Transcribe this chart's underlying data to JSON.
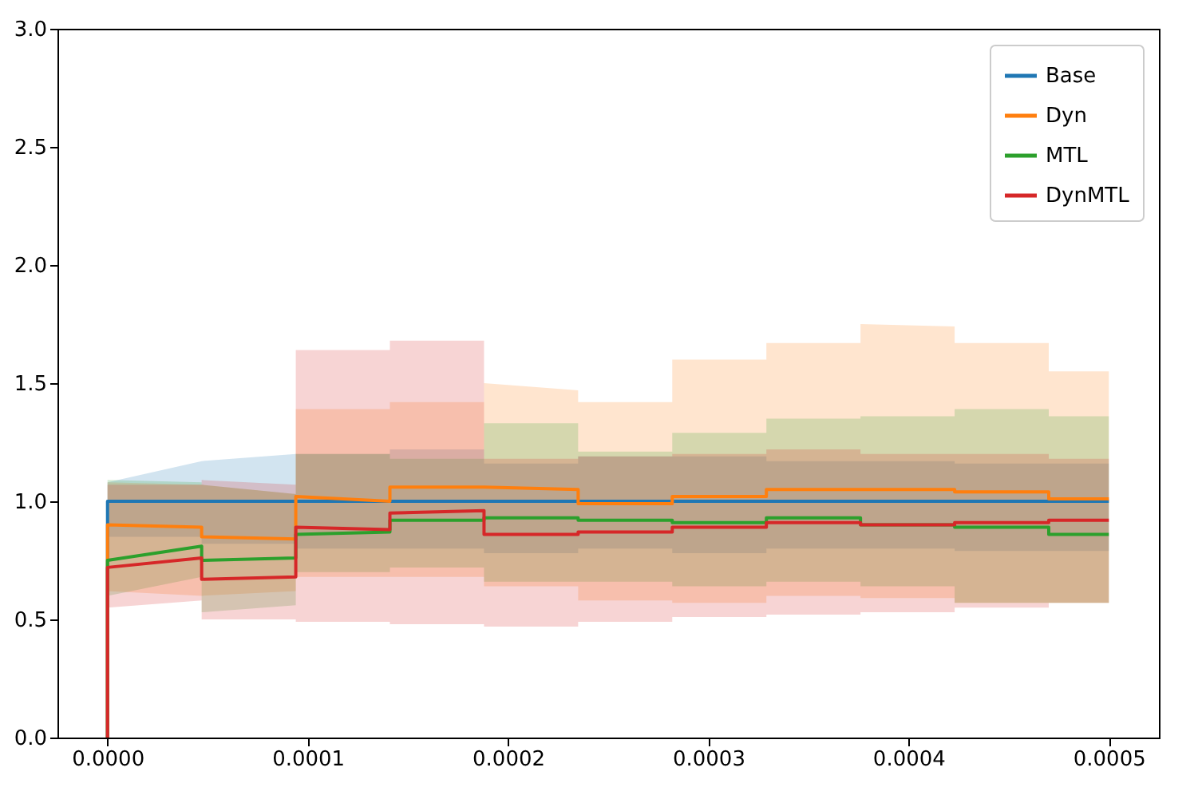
{
  "chart_data": {
    "type": "line",
    "x": [
      0,
      0,
      4.7e-05,
      4.7e-05,
      9.4e-05,
      9.4e-05,
      0.000141,
      0.000141,
      0.000188,
      0.000188,
      0.000235,
      0.000235,
      0.000282,
      0.000282,
      0.000329,
      0.000329,
      0.000376,
      0.000376,
      0.000423,
      0.000423,
      0.00047,
      0.00047,
      0.0005
    ],
    "series": [
      {
        "name": "Base",
        "color": "#1f77b4",
        "values": [
          0,
          1.0,
          1.0,
          1.0,
          1.0,
          1.0,
          1.0,
          1.0,
          1.0,
          1.0,
          1.0,
          1.0,
          1.0,
          1.0,
          1.0,
          1.0,
          1.0,
          1.0,
          1.0,
          1.0,
          1.0,
          1.0,
          1.0
        ],
        "lower": [
          null,
          0.85,
          0.85,
          0.82,
          0.82,
          0.8,
          0.8,
          0.8,
          0.8,
          0.78,
          0.78,
          0.8,
          0.8,
          0.78,
          0.78,
          0.8,
          0.8,
          0.8,
          0.8,
          0.79,
          0.79,
          0.79,
          0.79
        ],
        "upper": [
          null,
          1.08,
          1.17,
          1.17,
          1.2,
          1.2,
          1.2,
          1.22,
          1.22,
          1.16,
          1.16,
          1.19,
          1.19,
          1.19,
          1.19,
          1.17,
          1.17,
          1.17,
          1.17,
          1.16,
          1.16,
          1.16,
          1.16
        ]
      },
      {
        "name": "Dyn",
        "color": "#ff7f0e",
        "values": [
          0,
          0.9,
          0.89,
          0.85,
          0.84,
          1.02,
          1.0,
          1.06,
          1.06,
          1.06,
          1.05,
          0.99,
          0.99,
          1.02,
          1.02,
          1.05,
          1.05,
          1.05,
          1.05,
          1.04,
          1.04,
          1.01,
          1.01
        ],
        "lower": [
          null,
          0.62,
          0.6,
          0.6,
          0.62,
          0.68,
          0.68,
          0.68,
          0.68,
          0.64,
          0.64,
          0.58,
          0.58,
          0.57,
          0.57,
          0.6,
          0.6,
          0.59,
          0.59,
          0.57,
          0.57,
          0.57,
          0.57
        ],
        "upper": [
          null,
          1.08,
          1.07,
          1.07,
          1.03,
          1.39,
          1.39,
          1.42,
          1.42,
          1.5,
          1.47,
          1.42,
          1.42,
          1.6,
          1.6,
          1.67,
          1.67,
          1.75,
          1.74,
          1.67,
          1.67,
          1.55,
          1.55
        ]
      },
      {
        "name": "MTL",
        "color": "#2ca02c",
        "values": [
          0,
          0.75,
          0.81,
          0.75,
          0.76,
          0.86,
          0.87,
          0.92,
          0.92,
          0.93,
          0.93,
          0.92,
          0.92,
          0.91,
          0.91,
          0.93,
          0.93,
          0.9,
          0.9,
          0.89,
          0.89,
          0.86,
          0.86
        ],
        "lower": [
          null,
          0.6,
          0.68,
          0.53,
          0.56,
          0.7,
          0.7,
          0.72,
          0.72,
          0.66,
          0.66,
          0.66,
          0.66,
          0.64,
          0.64,
          0.66,
          0.66,
          0.64,
          0.64,
          0.57,
          0.57,
          0.57,
          0.57
        ],
        "upper": [
          null,
          1.09,
          1.08,
          1.07,
          1.03,
          1.2,
          1.2,
          1.18,
          1.18,
          1.33,
          1.33,
          1.21,
          1.21,
          1.29,
          1.29,
          1.35,
          1.35,
          1.36,
          1.36,
          1.39,
          1.39,
          1.36,
          1.36
        ]
      },
      {
        "name": "DynMTL",
        "color": "#d62728",
        "values": [
          0,
          0.72,
          0.76,
          0.67,
          0.68,
          0.89,
          0.88,
          0.95,
          0.96,
          0.86,
          0.86,
          0.87,
          0.87,
          0.89,
          0.89,
          0.91,
          0.91,
          0.9,
          0.9,
          0.91,
          0.91,
          0.92,
          0.92
        ],
        "lower": [
          null,
          0.55,
          0.58,
          0.5,
          0.5,
          0.49,
          0.49,
          0.48,
          0.48,
          0.47,
          0.47,
          0.49,
          0.49,
          0.51,
          0.51,
          0.52,
          0.52,
          0.53,
          0.53,
          0.55,
          0.55,
          0.57,
          0.57
        ],
        "upper": [
          null,
          1.07,
          1.07,
          1.09,
          1.07,
          1.64,
          1.64,
          1.68,
          1.68,
          1.18,
          1.18,
          1.19,
          1.19,
          1.2,
          1.2,
          1.22,
          1.22,
          1.2,
          1.2,
          1.2,
          1.2,
          1.18,
          1.18
        ]
      }
    ],
    "xlim": [
      -2.5e-05,
      0.000525
    ],
    "xticks": [
      {
        "value": 0,
        "label": "0.0000"
      },
      {
        "value": 0.0001,
        "label": "0.0001"
      },
      {
        "value": 0.0002,
        "label": "0.0002"
      },
      {
        "value": 0.0003,
        "label": "0.0003"
      },
      {
        "value": 0.0004,
        "label": "0.0004"
      },
      {
        "value": 0.0005,
        "label": "0.0005"
      }
    ],
    "ylim": [
      0,
      3
    ],
    "yticks": [
      {
        "value": 0,
        "label": "0.0"
      },
      {
        "value": 0.5,
        "label": "0.5"
      },
      {
        "value": 1,
        "label": "1.0"
      },
      {
        "value": 1.5,
        "label": "1.5"
      },
      {
        "value": 2,
        "label": "2.0"
      },
      {
        "value": 2.5,
        "label": "2.5"
      },
      {
        "value": 3,
        "label": "3.0"
      }
    ],
    "legend": "top right"
  }
}
